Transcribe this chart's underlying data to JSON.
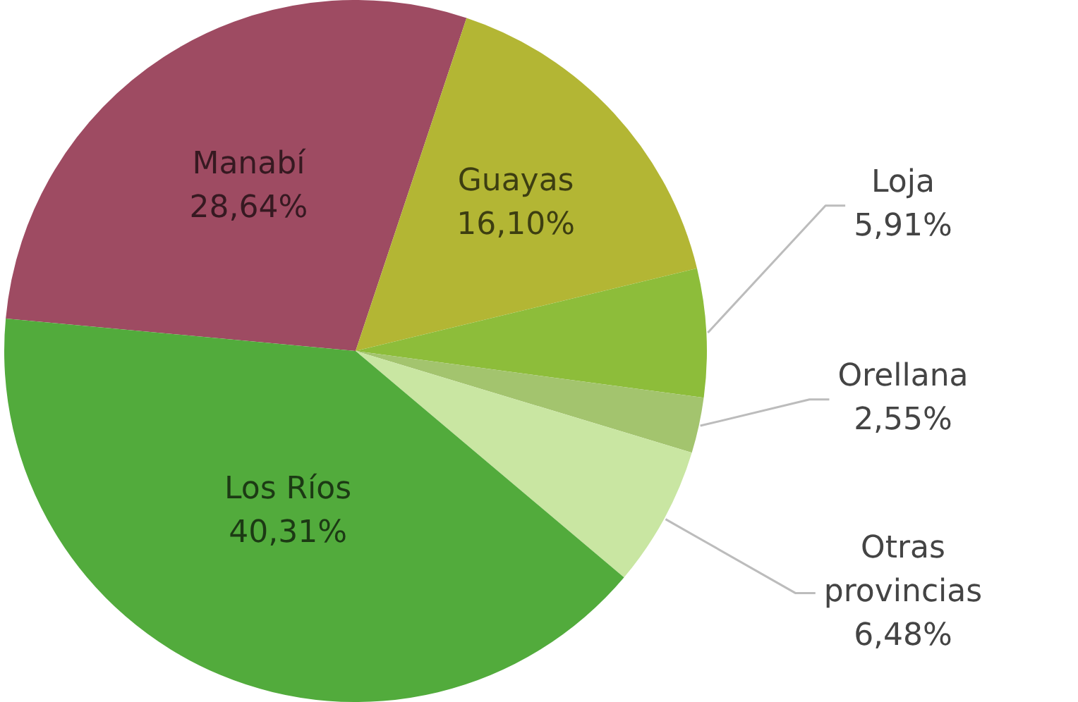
{
  "chart_data": {
    "type": "pie",
    "categories": [
      "Manabí",
      "Guayas",
      "Loja",
      "Orellana",
      "Otras provincias",
      "Los Ríos"
    ],
    "values": [
      28.64,
      16.1,
      5.91,
      2.55,
      6.48,
      40.31
    ],
    "value_labels": [
      "28,64%",
      "16,10%",
      "5,91%",
      "2,55%",
      "6,48%",
      "40,31%"
    ],
    "colors": [
      "#9e4b62",
      "#b3b634",
      "#8dbd3a",
      "#a3c46e",
      "#c9e6a2",
      "#52ab3c"
    ],
    "legend": false
  }
}
